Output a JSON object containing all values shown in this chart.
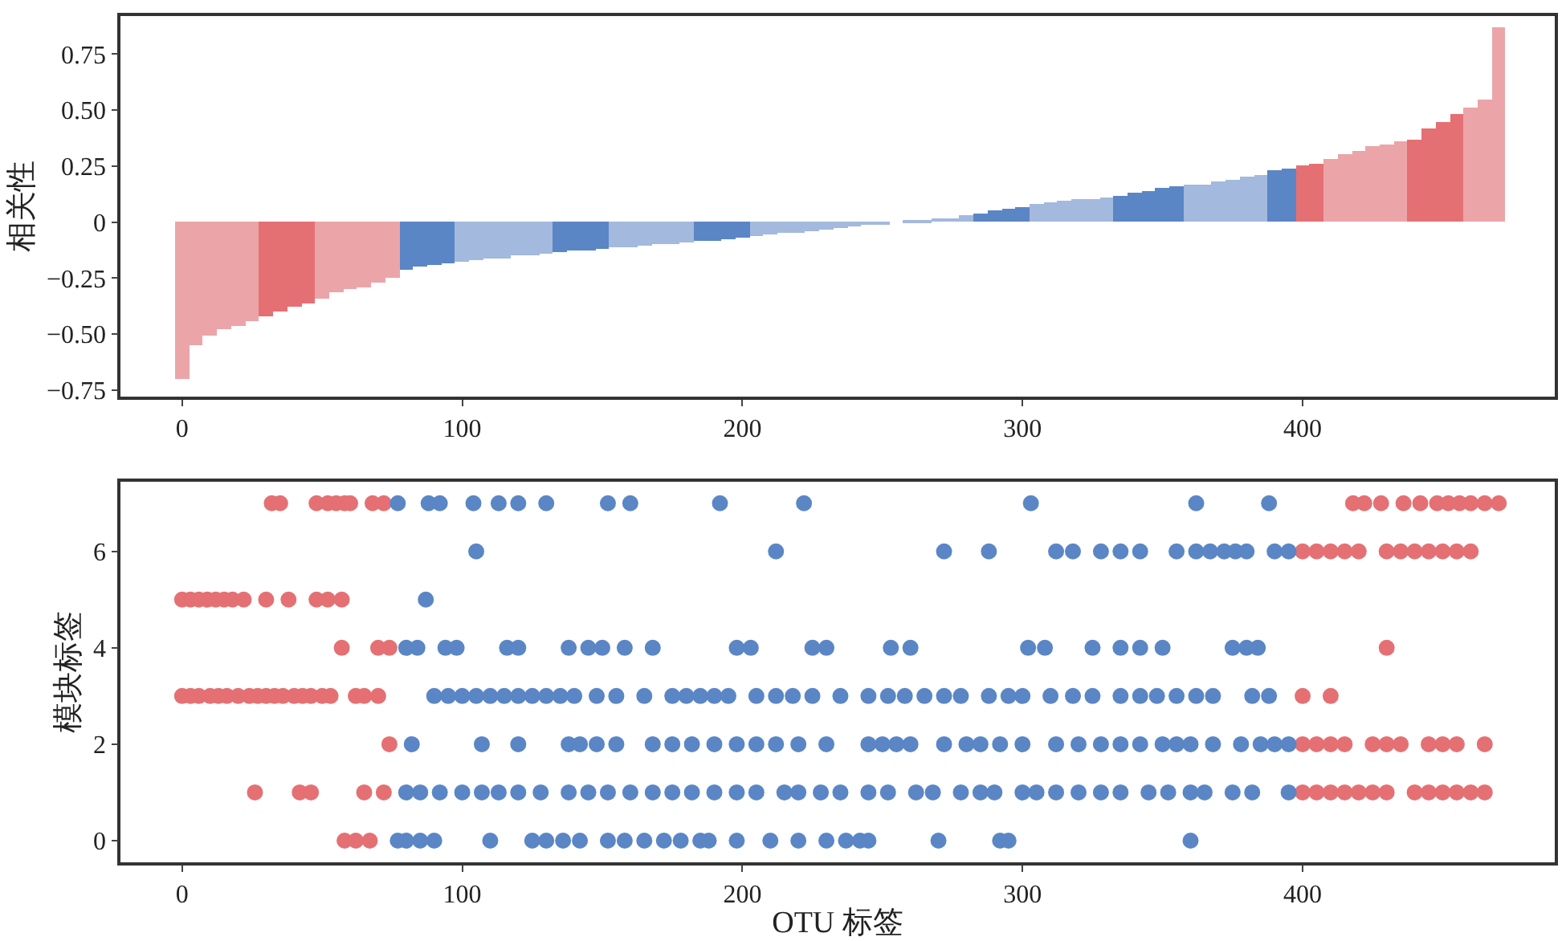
{
  "chart_data": [
    {
      "type": "bar",
      "ylabel": "相关性",
      "xlim": [
        -22,
        490
      ],
      "xticks": [
        0,
        100,
        200,
        300,
        400
      ],
      "ylim": [
        -0.78,
        0.92
      ],
      "yticks": [
        {
          "value": -0.75,
          "label": "−0.75"
        },
        {
          "value": -0.5,
          "label": "−0.50"
        },
        {
          "value": -0.25,
          "label": "−0.25"
        },
        {
          "value": 0,
          "label": "0"
        },
        {
          "value": 0.25,
          "label": "0.25"
        },
        {
          "value": 0.5,
          "label": "0.50"
        },
        {
          "value": 0.75,
          "label": "0.75"
        }
      ],
      "x": [
        0,
        5,
        10,
        15,
        20,
        25,
        30,
        35,
        40,
        45,
        50,
        55,
        60,
        65,
        70,
        75,
        80,
        85,
        90,
        95,
        100,
        105,
        110,
        115,
        120,
        125,
        130,
        135,
        140,
        145,
        150,
        155,
        160,
        165,
        170,
        175,
        180,
        185,
        190,
        195,
        200,
        205,
        210,
        215,
        220,
        225,
        230,
        235,
        240,
        245,
        250,
        255,
        260,
        265,
        270,
        275,
        280,
        285,
        290,
        295,
        300,
        305,
        310,
        315,
        320,
        325,
        330,
        335,
        340,
        345,
        350,
        355,
        360,
        365,
        370,
        375,
        380,
        385,
        390,
        395,
        400,
        405,
        410,
        415,
        420,
        425,
        430,
        435,
        440,
        445,
        450,
        455,
        460,
        465,
        470
      ],
      "values": [
        -0.7,
        -0.55,
        -0.51,
        -0.48,
        -0.46,
        -0.44,
        -0.42,
        -0.4,
        -0.38,
        -0.36,
        -0.34,
        -0.31,
        -0.3,
        -0.29,
        -0.27,
        -0.25,
        -0.21,
        -0.2,
        -0.19,
        -0.185,
        -0.18,
        -0.17,
        -0.165,
        -0.16,
        -0.15,
        -0.145,
        -0.14,
        -0.135,
        -0.13,
        -0.125,
        -0.12,
        -0.115,
        -0.11,
        -0.105,
        -0.1,
        -0.095,
        -0.09,
        -0.085,
        -0.08,
        -0.075,
        -0.07,
        -0.06,
        -0.055,
        -0.05,
        -0.045,
        -0.04,
        -0.03,
        -0.025,
        -0.02,
        -0.015,
        -0.005,
        0,
        0.005,
        0.01,
        0.015,
        0.02,
        0.03,
        0.04,
        0.05,
        0.06,
        0.07,
        0.08,
        0.09,
        0.095,
        0.1,
        0.105,
        0.11,
        0.12,
        0.13,
        0.14,
        0.15,
        0.16,
        0.165,
        0.17,
        0.18,
        0.19,
        0.2,
        0.21,
        0.23,
        0.24,
        0.25,
        0.26,
        0.28,
        0.3,
        0.32,
        0.34,
        0.35,
        0.36,
        0.37,
        0.42,
        0.45,
        0.48,
        0.51,
        0.55,
        0.87
      ],
      "colors": [
        "#eba5a8",
        "#eba5a8",
        "#eba5a8",
        "#eba5a8",
        "#eba5a8",
        "#eba5a8",
        "#e57073",
        "#e57073",
        "#e57073",
        "#e57073",
        "#eba5a8",
        "#eba5a8",
        "#eba5a8",
        "#eba5a8",
        "#eba5a8",
        "#eba5a8",
        "#5a86c5",
        "#5a86c5",
        "#5a86c5",
        "#5a86c5",
        "#a3b9dd",
        "#a3b9dd",
        "#a3b9dd",
        "#a3b9dd",
        "#a3b9dd",
        "#a3b9dd",
        "#a3b9dd",
        "#5a86c5",
        "#5a86c5",
        "#5a86c5",
        "#5a86c5",
        "#a3b9dd",
        "#a3b9dd",
        "#a3b9dd",
        "#a3b9dd",
        "#a3b9dd",
        "#a3b9dd",
        "#5a86c5",
        "#5a86c5",
        "#5a86c5",
        "#5a86c5",
        "#a3b9dd",
        "#a3b9dd",
        "#a3b9dd",
        "#a3b9dd",
        "#a3b9dd",
        "#a3b9dd",
        "#a3b9dd",
        "#a3b9dd",
        "#a3b9dd",
        "#a3b9dd",
        "#a3b9dd",
        "#a3b9dd",
        "#a3b9dd",
        "#a3b9dd",
        "#a3b9dd",
        "#a3b9dd",
        "#5a86c5",
        "#5a86c5",
        "#5a86c5",
        "#5a86c5",
        "#a3b9dd",
        "#a3b9dd",
        "#a3b9dd",
        "#a3b9dd",
        "#a3b9dd",
        "#a3b9dd",
        "#5a86c5",
        "#5a86c5",
        "#5a86c5",
        "#5a86c5",
        "#5a86c5",
        "#a3b9dd",
        "#a3b9dd",
        "#a3b9dd",
        "#a3b9dd",
        "#a3b9dd",
        "#a3b9dd",
        "#5a86c5",
        "#5a86c5",
        "#e57073",
        "#e57073",
        "#eba5a8",
        "#eba5a8",
        "#eba5a8",
        "#eba5a8",
        "#eba5a8",
        "#eba5a8",
        "#e57073",
        "#e57073",
        "#e57073",
        "#e57073",
        "#eba5a8",
        "#eba5a8",
        "#eba5a8"
      ]
    },
    {
      "type": "scatter",
      "xlabel": "OTU 标签",
      "ylabel": "模块标签",
      "xlim": [
        -22,
        490
      ],
      "xticks": [
        0,
        100,
        200,
        300,
        400
      ],
      "ylim": [
        -0.45,
        7.45
      ],
      "yticks": [
        0,
        2,
        4,
        6
      ],
      "marker": "circle",
      "series": [
        {
          "color": "#e57073",
          "x": [
            32,
            35,
            48,
            52,
            55,
            58,
            60,
            68,
            72,
            418,
            422,
            428,
            436,
            442,
            448,
            452,
            456,
            460,
            465,
            470,
            400,
            405,
            410,
            415,
            420,
            430,
            435,
            440,
            445,
            450,
            455,
            460,
            0,
            3,
            6,
            9,
            12,
            15,
            18,
            22,
            30,
            38,
            48,
            52,
            57,
            57,
            70,
            74,
            430,
            0,
            3,
            6,
            10,
            13,
            16,
            20,
            24,
            27,
            30,
            33,
            36,
            40,
            43,
            46,
            50,
            53,
            62,
            65,
            70,
            400,
            410,
            74,
            400,
            405,
            410,
            415,
            425,
            430,
            435,
            445,
            450,
            455,
            465,
            26,
            42,
            46,
            65,
            72,
            400,
            405,
            410,
            415,
            420,
            425,
            430,
            440,
            445,
            450,
            455,
            460,
            465,
            58,
            62,
            67
          ],
          "values": [
            7,
            7,
            7,
            7,
            7,
            7,
            7,
            7,
            7,
            7,
            7,
            7,
            7,
            7,
            7,
            7,
            7,
            7,
            7,
            7,
            6,
            6,
            6,
            6,
            6,
            6,
            6,
            6,
            6,
            6,
            6,
            6,
            5,
            5,
            5,
            5,
            5,
            5,
            5,
            5,
            5,
            5,
            5,
            5,
            5,
            4,
            4,
            4,
            4,
            3,
            3,
            3,
            3,
            3,
            3,
            3,
            3,
            3,
            3,
            3,
            3,
            3,
            3,
            3,
            3,
            3,
            3,
            3,
            3,
            3,
            3,
            2,
            2,
            2,
            2,
            2,
            2,
            2,
            2,
            2,
            2,
            2,
            2,
            1,
            1,
            1,
            1,
            1,
            1,
            1,
            1,
            1,
            1,
            1,
            1,
            1,
            1,
            1,
            1,
            1,
            1,
            0,
            0,
            0
          ]
        },
        {
          "color": "#5a86c5",
          "x": [
            77,
            88,
            92,
            104,
            113,
            120,
            130,
            152,
            160,
            192,
            222,
            303,
            362,
            388,
            105,
            212,
            272,
            288,
            312,
            318,
            328,
            335,
            342,
            355,
            362,
            367,
            372,
            376,
            380,
            390,
            395,
            87,
            80,
            84,
            94,
            98,
            116,
            120,
            138,
            145,
            150,
            158,
            168,
            198,
            203,
            225,
            230,
            253,
            260,
            302,
            308,
            325,
            335,
            342,
            350,
            375,
            380,
            384,
            90,
            95,
            100,
            105,
            110,
            115,
            120,
            125,
            130,
            135,
            140,
            148,
            155,
            165,
            175,
            180,
            185,
            190,
            195,
            205,
            212,
            218,
            225,
            235,
            245,
            252,
            258,
            265,
            272,
            278,
            288,
            295,
            300,
            310,
            318,
            325,
            335,
            342,
            348,
            355,
            362,
            368,
            382,
            388,
            82,
            107,
            120,
            138,
            142,
            148,
            155,
            168,
            175,
            182,
            190,
            198,
            205,
            212,
            220,
            230,
            245,
            250,
            255,
            260,
            272,
            280,
            285,
            292,
            300,
            312,
            320,
            328,
            335,
            342,
            350,
            355,
            360,
            368,
            378,
            385,
            390,
            395,
            80,
            85,
            92,
            100,
            107,
            113,
            120,
            128,
            138,
            145,
            152,
            160,
            168,
            175,
            182,
            190,
            198,
            205,
            215,
            220,
            228,
            235,
            245,
            252,
            262,
            268,
            278,
            285,
            290,
            300,
            305,
            312,
            320,
            328,
            335,
            345,
            352,
            360,
            365,
            375,
            382,
            395,
            77,
            80,
            85,
            90,
            110,
            125,
            130,
            136,
            142,
            152,
            158,
            165,
            172,
            178,
            185,
            188,
            198,
            210,
            220,
            230,
            237,
            242,
            245,
            270,
            292,
            295,
            360
          ],
          "values": [
            7,
            7,
            7,
            7,
            7,
            7,
            7,
            7,
            7,
            7,
            7,
            7,
            7,
            7,
            6,
            6,
            6,
            6,
            6,
            6,
            6,
            6,
            6,
            6,
            6,
            6,
            6,
            6,
            6,
            6,
            6,
            5,
            4,
            4,
            4,
            4,
            4,
            4,
            4,
            4,
            4,
            4,
            4,
            4,
            4,
            4,
            4,
            4,
            4,
            4,
            4,
            4,
            4,
            4,
            4,
            4,
            4,
            4,
            3,
            3,
            3,
            3,
            3,
            3,
            3,
            3,
            3,
            3,
            3,
            3,
            3,
            3,
            3,
            3,
            3,
            3,
            3,
            3,
            3,
            3,
            3,
            3,
            3,
            3,
            3,
            3,
            3,
            3,
            3,
            3,
            3,
            3,
            3,
            3,
            3,
            3,
            3,
            3,
            3,
            3,
            3,
            3,
            2,
            2,
            2,
            2,
            2,
            2,
            2,
            2,
            2,
            2,
            2,
            2,
            2,
            2,
            2,
            2,
            2,
            2,
            2,
            2,
            2,
            2,
            2,
            2,
            2,
            2,
            2,
            2,
            2,
            2,
            2,
            2,
            2,
            2,
            2,
            2,
            2,
            2,
            1,
            1,
            1,
            1,
            1,
            1,
            1,
            1,
            1,
            1,
            1,
            1,
            1,
            1,
            1,
            1,
            1,
            1,
            1,
            1,
            1,
            1,
            1,
            1,
            1,
            1,
            1,
            1,
            1,
            1,
            1,
            1,
            1,
            1,
            1,
            1,
            1,
            1,
            1,
            1,
            1,
            1,
            0,
            0,
            0,
            0,
            0,
            0,
            0,
            0,
            0,
            0,
            0,
            0,
            0,
            0,
            0,
            0,
            0,
            0,
            0,
            0,
            0,
            0,
            0,
            0,
            0,
            0,
            0
          ]
        }
      ]
    }
  ]
}
